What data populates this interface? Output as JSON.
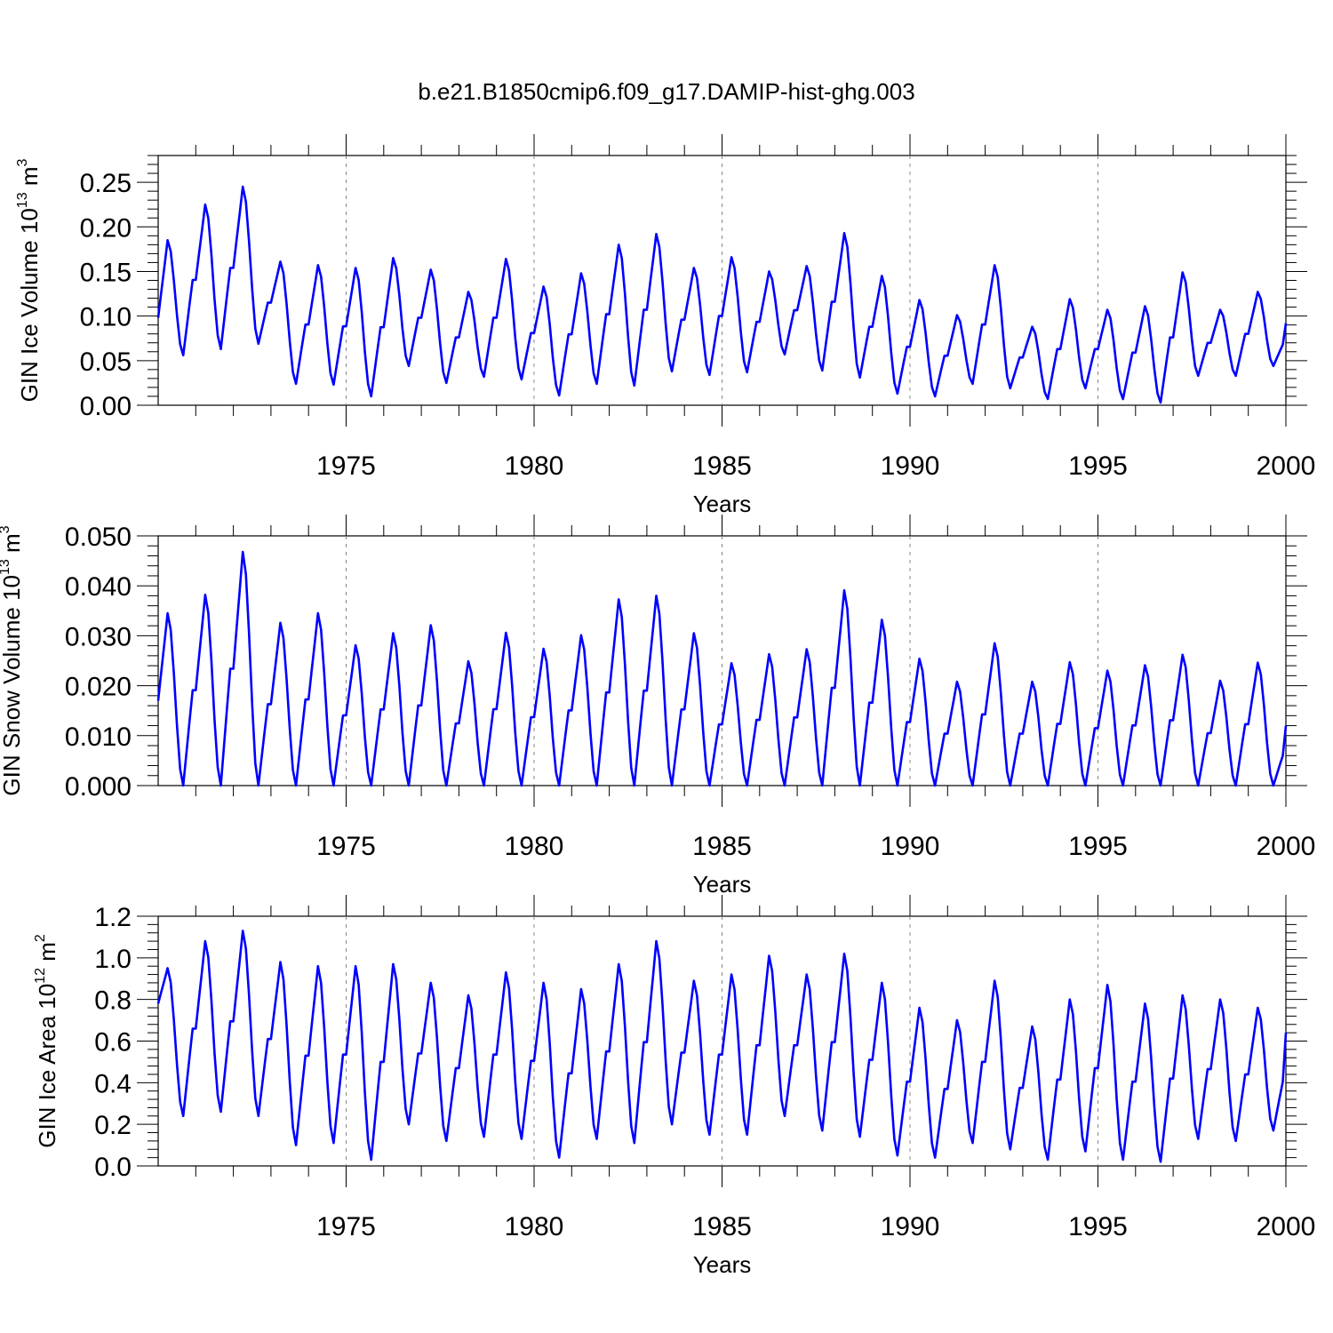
{
  "chart_data": {
    "title": "b.e21.B1850cmip6.f09_g17.DAMIP-hist-ghg.003",
    "x_range": [
      1970,
      2000
    ],
    "x_ticks": [
      1975,
      1980,
      1985,
      1990,
      1995,
      2000
    ],
    "x_tick_labels": [
      "1975",
      "1980",
      "1985",
      "1990",
      "1995",
      "2000"
    ],
    "xlabel": "Years",
    "line_color": "#0000ff",
    "panels": [
      {
        "type": "line",
        "ylabel_main": "GIN Ice Volume 10",
        "ylabel_exp": "13",
        "ylabel_unit": " m",
        "ylabel_unit_exp": "3",
        "ylim": [
          0,
          0.28
        ],
        "y_ticks": [
          0.0,
          0.05,
          0.1,
          0.15,
          0.2,
          0.25
        ],
        "y_tick_labels": [
          "0.00",
          "0.05",
          "0.10",
          "0.15",
          "0.20",
          "0.25"
        ],
        "annual": [
          {
            "max": 0.185,
            "min": 0.056
          },
          {
            "max": 0.225,
            "min": 0.063
          },
          {
            "max": 0.245,
            "min": 0.069
          },
          {
            "max": 0.161,
            "min": 0.024
          },
          {
            "max": 0.157,
            "min": 0.023
          },
          {
            "max": 0.154,
            "min": 0.01
          },
          {
            "max": 0.165,
            "min": 0.044
          },
          {
            "max": 0.152,
            "min": 0.025
          },
          {
            "max": 0.127,
            "min": 0.032
          },
          {
            "max": 0.164,
            "min": 0.029
          },
          {
            "max": 0.133,
            "min": 0.011
          },
          {
            "max": 0.148,
            "min": 0.024
          },
          {
            "max": 0.18,
            "min": 0.022
          },
          {
            "max": 0.192,
            "min": 0.038
          },
          {
            "max": 0.154,
            "min": 0.034
          },
          {
            "max": 0.166,
            "min": 0.037
          },
          {
            "max": 0.15,
            "min": 0.057
          },
          {
            "max": 0.156,
            "min": 0.039
          },
          {
            "max": 0.193,
            "min": 0.031
          },
          {
            "max": 0.145,
            "min": 0.013
          },
          {
            "max": 0.118,
            "min": 0.01
          },
          {
            "max": 0.101,
            "min": 0.024
          },
          {
            "max": 0.157,
            "min": 0.019
          },
          {
            "max": 0.088,
            "min": 0.007
          },
          {
            "max": 0.119,
            "min": 0.019
          },
          {
            "max": 0.107,
            "min": 0.007
          },
          {
            "max": 0.111,
            "min": 0.003
          },
          {
            "max": 0.149,
            "min": 0.033
          },
          {
            "max": 0.107,
            "min": 0.033
          },
          {
            "max": 0.127,
            "min": 0.044
          }
        ],
        "end_value": 0.092,
        "start_value": 0.098
      },
      {
        "type": "line",
        "ylabel_main": "GIN Snow Volume 10",
        "ylabel_exp": "13",
        "ylabel_unit": " m",
        "ylabel_unit_exp": "3",
        "ylim": [
          0,
          0.05
        ],
        "y_ticks": [
          0.0,
          0.01,
          0.02,
          0.03,
          0.04,
          0.05
        ],
        "y_tick_labels": [
          "0.000",
          "0.010",
          "0.020",
          "0.030",
          "0.040",
          "0.050"
        ],
        "annual": [
          {
            "max": 0.0345,
            "min": 0.0
          },
          {
            "max": 0.0382,
            "min": 0.0
          },
          {
            "max": 0.0468,
            "min": 0.0
          },
          {
            "max": 0.0326,
            "min": 0.0
          },
          {
            "max": 0.0345,
            "min": 0.0
          },
          {
            "max": 0.0281,
            "min": 0.0
          },
          {
            "max": 0.0305,
            "min": 0.0
          },
          {
            "max": 0.0321,
            "min": 0.0
          },
          {
            "max": 0.0249,
            "min": 0.0
          },
          {
            "max": 0.0306,
            "min": 0.0
          },
          {
            "max": 0.0274,
            "min": 0.0
          },
          {
            "max": 0.0301,
            "min": 0.0
          },
          {
            "max": 0.0373,
            "min": 0.0
          },
          {
            "max": 0.038,
            "min": 0.0
          },
          {
            "max": 0.0305,
            "min": 0.0
          },
          {
            "max": 0.0245,
            "min": 0.0
          },
          {
            "max": 0.0263,
            "min": 0.0
          },
          {
            "max": 0.0273,
            "min": 0.0
          },
          {
            "max": 0.0391,
            "min": 0.0
          },
          {
            "max": 0.0332,
            "min": 0.0
          },
          {
            "max": 0.0254,
            "min": 0.0
          },
          {
            "max": 0.0208,
            "min": 0.0
          },
          {
            "max": 0.0285,
            "min": 0.0
          },
          {
            "max": 0.0208,
            "min": 0.0
          },
          {
            "max": 0.0247,
            "min": 0.0
          },
          {
            "max": 0.023,
            "min": 0.0
          },
          {
            "max": 0.0241,
            "min": 0.0
          },
          {
            "max": 0.0262,
            "min": 0.0
          },
          {
            "max": 0.021,
            "min": 0.0
          },
          {
            "max": 0.0246,
            "min": 0.0
          }
        ],
        "end_value": 0.012,
        "start_value": 0.017
      },
      {
        "type": "line",
        "ylabel_main": "GIN Ice Area 10",
        "ylabel_exp": "12",
        "ylabel_unit": " m",
        "ylabel_unit_exp": "2",
        "ylim": [
          0,
          1.2
        ],
        "y_ticks": [
          0.0,
          0.2,
          0.4,
          0.6,
          0.8,
          1.0,
          1.2
        ],
        "y_tick_labels": [
          "0.0",
          "0.2",
          "0.4",
          "0.6",
          "0.8",
          "1.0",
          "1.2"
        ],
        "annual": [
          {
            "max": 0.95,
            "min": 0.24
          },
          {
            "max": 1.08,
            "min": 0.26
          },
          {
            "max": 1.13,
            "min": 0.24
          },
          {
            "max": 0.98,
            "min": 0.1
          },
          {
            "max": 0.96,
            "min": 0.11
          },
          {
            "max": 0.96,
            "min": 0.03
          },
          {
            "max": 0.97,
            "min": 0.2
          },
          {
            "max": 0.88,
            "min": 0.12
          },
          {
            "max": 0.82,
            "min": 0.14
          },
          {
            "max": 0.93,
            "min": 0.13
          },
          {
            "max": 0.88,
            "min": 0.04
          },
          {
            "max": 0.85,
            "min": 0.13
          },
          {
            "max": 0.97,
            "min": 0.11
          },
          {
            "max": 1.08,
            "min": 0.2
          },
          {
            "max": 0.89,
            "min": 0.15
          },
          {
            "max": 0.92,
            "min": 0.15
          },
          {
            "max": 1.01,
            "min": 0.24
          },
          {
            "max": 0.92,
            "min": 0.17
          },
          {
            "max": 1.02,
            "min": 0.14
          },
          {
            "max": 0.88,
            "min": 0.05
          },
          {
            "max": 0.76,
            "min": 0.04
          },
          {
            "max": 0.7,
            "min": 0.11
          },
          {
            "max": 0.89,
            "min": 0.08
          },
          {
            "max": 0.67,
            "min": 0.03
          },
          {
            "max": 0.8,
            "min": 0.07
          },
          {
            "max": 0.87,
            "min": 0.03
          },
          {
            "max": 0.78,
            "min": 0.02
          },
          {
            "max": 0.82,
            "min": 0.13
          },
          {
            "max": 0.8,
            "min": 0.12
          },
          {
            "max": 0.76,
            "min": 0.17
          }
        ],
        "end_value": 0.64,
        "start_value": 0.78
      }
    ]
  }
}
